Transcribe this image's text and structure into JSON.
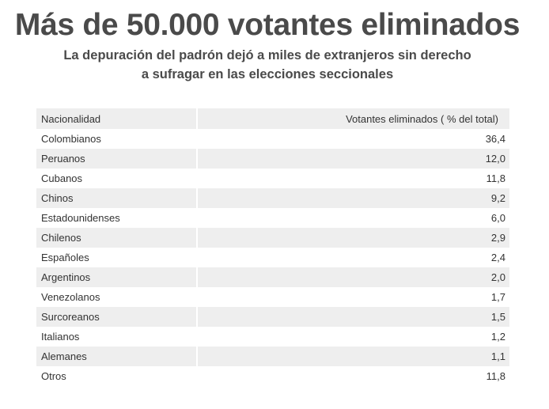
{
  "header": {
    "title": "Más de 50.000 votantes eliminados",
    "subtitle_line1": "La depuración del padrón dejó a miles de extranjeros sin derecho",
    "subtitle_line2": "a sufragar en las elecciones seccionales"
  },
  "chart_data": {
    "type": "table",
    "title": "Más de 50.000 votantes eliminados",
    "subtitle": "La depuración del padrón dejó a miles de extranjeros sin derecho a sufragar en las elecciones seccionales",
    "columns": [
      "Nacionalidad",
      "Votantes eliminados ( % del total)"
    ],
    "rows": [
      {
        "label": "Colombianos",
        "value": "36,4"
      },
      {
        "label": "Peruanos",
        "value": "12,0"
      },
      {
        "label": "Cubanos",
        "value": "11,8"
      },
      {
        "label": "Chinos",
        "value": "9,2"
      },
      {
        "label": "Estadounidenses",
        "value": "6,0"
      },
      {
        "label": "Chilenos",
        "value": "2,9"
      },
      {
        "label": "Españoles",
        "value": "2,4"
      },
      {
        "label": "Argentinos",
        "value": "2,0"
      },
      {
        "label": "Venezolanos",
        "value": "1,7"
      },
      {
        "label": "Surcoreanos",
        "value": "1,5"
      },
      {
        "label": "Italianos",
        "value": "1,2"
      },
      {
        "label": "Alemanes",
        "value": "1,1"
      },
      {
        "label": "Otros",
        "value": "11,8"
      }
    ]
  },
  "colors": {
    "title": "#4a4a4a",
    "text": "#333333",
    "stripe": "#eeeeee",
    "background": "#ffffff"
  }
}
